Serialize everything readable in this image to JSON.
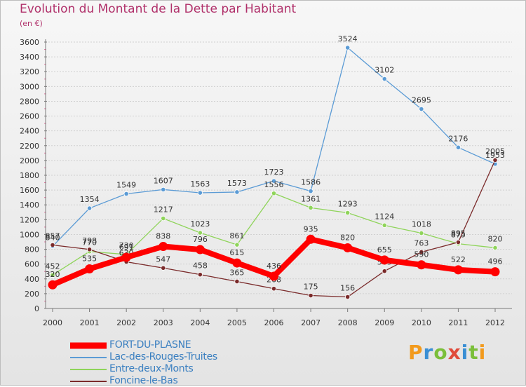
{
  "header": {
    "title": "Evolution du Montant de la Dette par Habitant",
    "unit": "(en €)"
  },
  "logo": {
    "text": "Proxiti",
    "letter_colors": [
      "#f29a1d",
      "#3a8fd4",
      "#7bbf3a",
      "#e04a3a",
      "#3a8fd4",
      "#7bbf3a",
      "#f29a1d"
    ]
  },
  "colors": {
    "title": "#b0306a",
    "axis": "#7a7a7a",
    "grid": "#d0d0d0",
    "legend_text": "#3a7fc0"
  },
  "chart_data": {
    "type": "line",
    "x": [
      "2000",
      "2001",
      "2002",
      "2003",
      "2004",
      "2005",
      "2006",
      "2007",
      "2008",
      "2009",
      "2010",
      "2011",
      "2012"
    ],
    "ylim": [
      0,
      3600
    ],
    "yticks": [
      0,
      200,
      400,
      600,
      800,
      1000,
      1200,
      1400,
      1600,
      1800,
      2000,
      2200,
      2400,
      2600,
      2800,
      3000,
      3200,
      3400,
      3600
    ],
    "grid": true,
    "legend_position": "bottom-left",
    "series": [
      {
        "name": "Lac-des-Rouges-Truites",
        "color": "#5b9bd5",
        "values": [
          840,
          1354,
          1549,
          1607,
          1563,
          1573,
          1723,
          1586,
          3524,
          3102,
          2695,
          2176,
          1953
        ]
      },
      {
        "name": "Entre-deux-Monts",
        "color": "#8fd45a",
        "values": [
          452,
          770,
          730,
          1217,
          1023,
          861,
          1556,
          1361,
          1293,
          1124,
          1018,
          875,
          820
        ]
      },
      {
        "name": "Foncine-le-Bas",
        "color": "#7a2a2a",
        "values": [
          857,
          798,
          630,
          547,
          458,
          365,
          268,
          175,
          156,
          505,
          763,
          895,
          2005
        ]
      },
      {
        "name": "FORT-DU-PLASNE",
        "color": "#ff0000",
        "values": [
          320,
          535,
          691,
          838,
          796,
          615,
          436,
          935,
          820,
          655,
          590,
          522,
          496
        ]
      }
    ]
  }
}
